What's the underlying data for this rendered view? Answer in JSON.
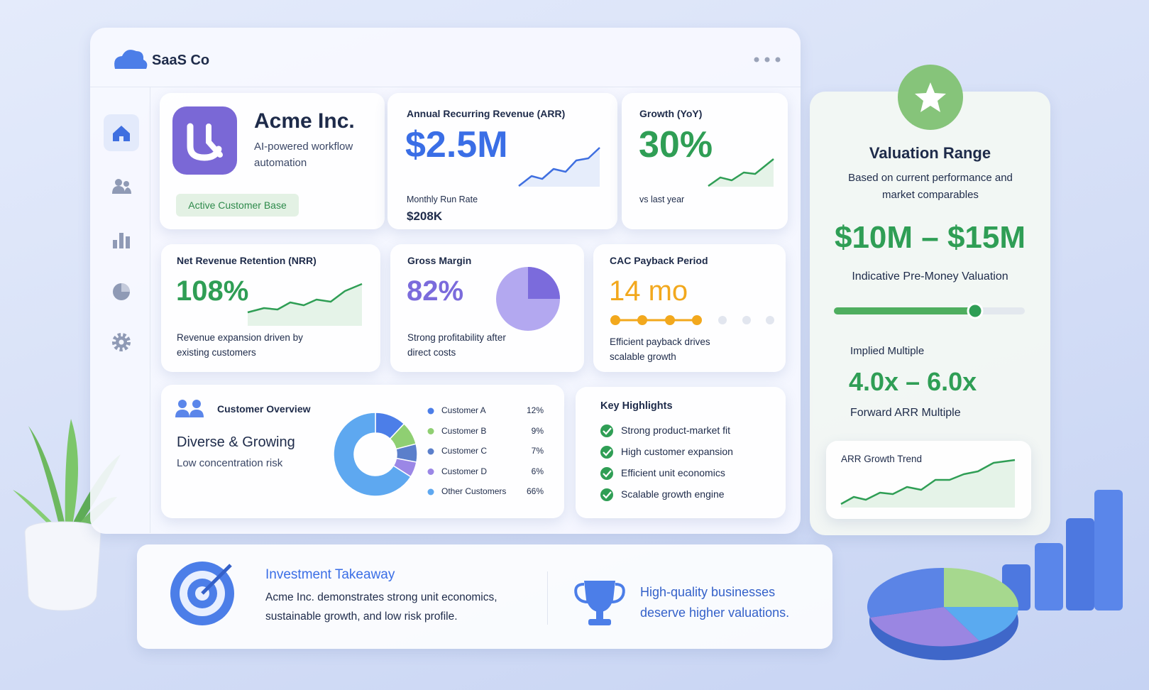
{
  "app": {
    "name": "SaaS Co"
  },
  "company": {
    "name": "Acme Inc.",
    "tagline": "AI-powered workflow automation",
    "badge": "Active Customer Base"
  },
  "arr": {
    "title": "Annual Recurring Revenue (ARR)",
    "value": "$2.5M",
    "run_rate_label": "Monthly Run Rate",
    "run_rate": "$208K"
  },
  "growth": {
    "title": "Growth (YoY)",
    "value": "30%",
    "note": "vs last year"
  },
  "nrr": {
    "title": "Net Revenue Retention (NRR)",
    "value": "108%",
    "note": "Revenue expansion driven by existing customers"
  },
  "gross_margin": {
    "title": "Gross Margin",
    "value": "82%",
    "note": "Strong profitability after direct costs"
  },
  "cac_payback": {
    "title": "CAC Payback Period",
    "value": "14 mo",
    "note": "Efficient payback drives scalable growth"
  },
  "customer_overview": {
    "title": "Customer Overview",
    "heading": "Diverse & Growing",
    "subheading": "Low concentration risk",
    "chart_data": {
      "type": "pie",
      "categories": [
        "Customer A",
        "Customer B",
        "Customer C",
        "Customer D",
        "Other Customers"
      ],
      "values": [
        12,
        9,
        7,
        6,
        66
      ],
      "value_labels": [
        "12%",
        "9%",
        "7%",
        "6%",
        "66%"
      ],
      "colors": [
        "#4c7ee8",
        "#8fcf72",
        "#5b7fcb",
        "#9b87e6",
        "#5ea8f0"
      ]
    }
  },
  "highlights": {
    "title": "Key Highlights",
    "items": [
      "Strong product-market fit",
      "High customer expansion",
      "Efficient unit economics",
      "Scalable growth engine"
    ]
  },
  "valuation": {
    "title": "Valuation Range",
    "subtitle": "Based on current performance and market comparables",
    "range": "$10M – $15M",
    "range_label": "Indicative Pre-Money Valuation",
    "multiple_label": "Implied Multiple",
    "multiple": "4.0x – 6.0x",
    "multiple_note": "Forward ARR Multiple",
    "trend_title": "ARR Growth Trend"
  },
  "takeaway": {
    "title": "Investment Takeaway",
    "text": "Acme Inc. demonstrates strong unit economics, sustainable growth, and low risk profile.",
    "quote": "High-quality businesses deserve higher valuations."
  }
}
